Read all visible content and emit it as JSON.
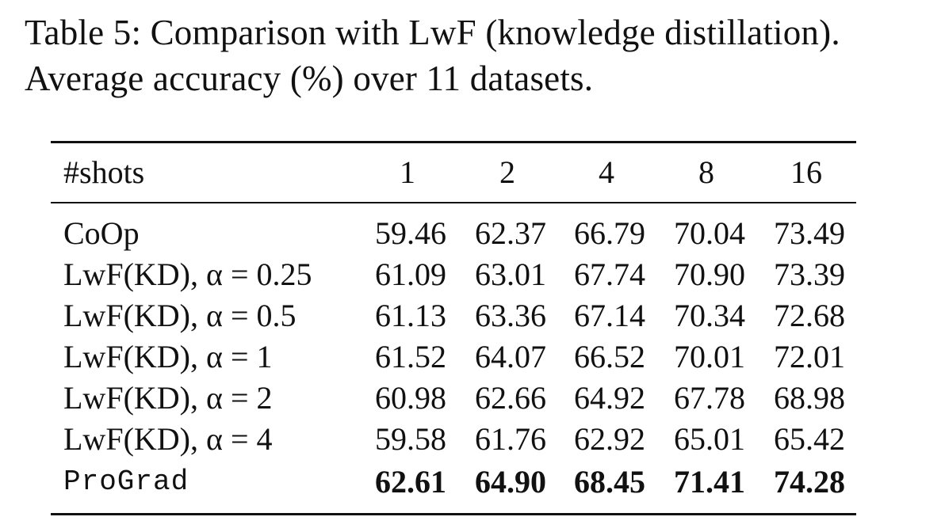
{
  "caption": {
    "line1": "Table 5:  Comparison with LwF (knowledge distillation).",
    "line2": "Average accuracy (%) over 11 datasets."
  },
  "table": {
    "header": {
      "label": "#shots",
      "columns": [
        "1",
        "2",
        "4",
        "8",
        "16"
      ]
    },
    "rows": [
      {
        "method": "CoOp",
        "values": [
          "59.46",
          "62.37",
          "66.79",
          "70.04",
          "73.49"
        ]
      },
      {
        "method": "LwF(KD), α = 0.25",
        "values": [
          "61.09",
          "63.01",
          "67.74",
          "70.90",
          "73.39"
        ]
      },
      {
        "method": "LwF(KD), α = 0.5",
        "values": [
          "61.13",
          "63.36",
          "67.14",
          "70.34",
          "72.68"
        ]
      },
      {
        "method": "LwF(KD), α = 1",
        "values": [
          "61.52",
          "64.07",
          "66.52",
          "70.01",
          "72.01"
        ]
      },
      {
        "method": "LwF(KD), α = 2",
        "values": [
          "60.98",
          "62.66",
          "64.92",
          "67.78",
          "68.98"
        ]
      },
      {
        "method": "LwF(KD), α = 4",
        "values": [
          "59.58",
          "61.76",
          "62.92",
          "65.01",
          "65.42"
        ]
      },
      {
        "method": "ProGrad",
        "values": [
          "62.61",
          "64.90",
          "68.45",
          "71.41",
          "74.28"
        ]
      }
    ]
  }
}
